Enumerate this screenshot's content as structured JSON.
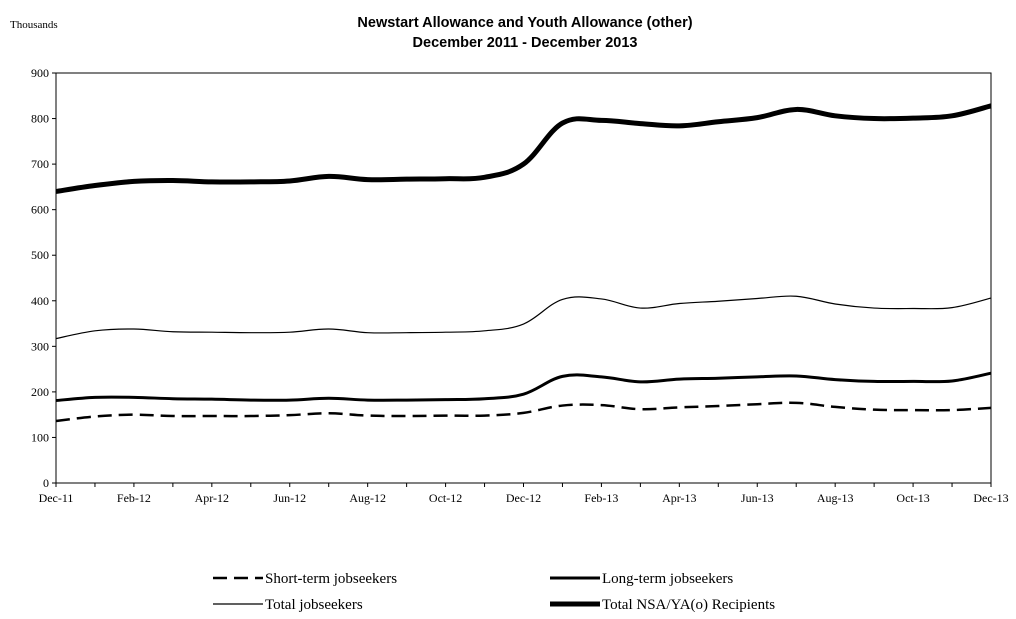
{
  "chart_data": {
    "type": "line",
    "title": "Newstart Allowance and Youth Allowance (other)",
    "subtitle": "December 2011 - December 2013",
    "ylabel": "Thousands",
    "xlabel": "",
    "ylim": [
      0,
      900
    ],
    "yticks": [
      0,
      100,
      200,
      300,
      400,
      500,
      600,
      700,
      800,
      900
    ],
    "x": [
      "Dec-11",
      "Jan-12",
      "Feb-12",
      "Mar-12",
      "Apr-12",
      "May-12",
      "Jun-12",
      "Jul-12",
      "Aug-12",
      "Sep-12",
      "Oct-12",
      "Nov-12",
      "Dec-12",
      "Jan-13",
      "Feb-13",
      "Mar-13",
      "Apr-13",
      "May-13",
      "Jun-13",
      "Jul-13",
      "Aug-13",
      "Sep-13",
      "Oct-13",
      "Nov-13",
      "Dec-13"
    ],
    "xtick_labels": [
      "Dec-11",
      "Feb-12",
      "Apr-12",
      "Jun-12",
      "Aug-12",
      "Oct-12",
      "Dec-12",
      "Feb-13",
      "Apr-13",
      "Jun-13",
      "Aug-13",
      "Oct-13",
      "Dec-13"
    ],
    "grid": false,
    "legend_position": "bottom",
    "series": [
      {
        "name": "Short-term jobseekers",
        "style": "dashed",
        "color": "#000000",
        "values": [
          136,
          146,
          150,
          147,
          147,
          147,
          149,
          153,
          148,
          147,
          148,
          148,
          154,
          170,
          171,
          162,
          166,
          169,
          173,
          176,
          167,
          161,
          160,
          160,
          165
        ]
      },
      {
        "name": "Long-term jobseekers",
        "style": "solid-medium",
        "color": "#000000",
        "values": [
          181,
          188,
          188,
          185,
          184,
          182,
          182,
          186,
          182,
          182,
          183,
          185,
          195,
          234,
          233,
          222,
          228,
          230,
          233,
          235,
          227,
          223,
          223,
          224,
          241
        ]
      },
      {
        "name": "Total jobseekers",
        "style": "solid-thin",
        "color": "#000000",
        "values": [
          317,
          334,
          338,
          332,
          331,
          330,
          331,
          338,
          330,
          330,
          331,
          334,
          349,
          403,
          404,
          384,
          394,
          399,
          405,
          410,
          393,
          384,
          383,
          385,
          406
        ]
      },
      {
        "name": "Total NSA/YA(o) Recipients",
        "style": "solid-thick",
        "color": "#000000",
        "values": [
          640,
          653,
          662,
          664,
          661,
          661,
          663,
          673,
          666,
          667,
          668,
          671,
          700,
          790,
          796,
          789,
          784,
          793,
          802,
          820,
          806,
          800,
          801,
          806,
          828
        ]
      }
    ]
  }
}
